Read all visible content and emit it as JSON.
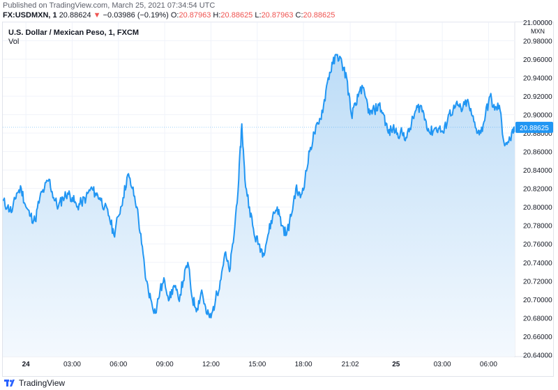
{
  "published": "Published on TradingView.com, March 25, 2021 07:34:54 UTC",
  "quote": {
    "symbol": "FX:USDMXN, 1",
    "last": "20.88624",
    "change_arrow": "▼",
    "change": "−0.03986 (−0.19%)",
    "o_label": "O:",
    "o": "20.87963",
    "h_label": "H:",
    "h": "20.88625",
    "l_label": "L:",
    "l": "20.87963",
    "c_label": "C:",
    "c": "20.88625"
  },
  "chart_title": "U.S. Dollar / Mexican Peso, 1, FXCM",
  "vol_label": "Vol",
  "currency": "MXN",
  "last_price_label": "20.88625",
  "footer_brand": "TradingView",
  "colors": {
    "line": "#2196f3",
    "area_top": "#bcdcf7",
    "area_bottom": "#f4f9fe",
    "vol_up": "#26a69a",
    "vol_down": "#ef5350",
    "price_tag": "#2196f3"
  },
  "chart_data": {
    "type": "area",
    "title": "U.S. Dollar / Mexican Peso, 1, FXCM",
    "x_tick_labels": [
      "24",
      "03:00",
      "06:00",
      "09:00",
      "12:00",
      "15:00",
      "18:00",
      "21:02",
      "25",
      "03:00",
      "06:00"
    ],
    "x_tick_hours": [
      0,
      3,
      6,
      9,
      12,
      15,
      18,
      21.03,
      24,
      27,
      30
    ],
    "x_range_hours": [
      -1.5,
      31.7
    ],
    "y_tick_labels": [
      "20.64000",
      "20.66000",
      "20.68000",
      "20.70000",
      "20.72000",
      "20.74000",
      "20.76000",
      "20.78000",
      "20.80000",
      "20.82000",
      "20.84000",
      "20.86000",
      "20.88000",
      "20.90000",
      "20.92000",
      "20.94000",
      "20.96000",
      "20.98000",
      "21.00000"
    ],
    "ylim": [
      20.638,
      21.0
    ],
    "last_price": 20.88625,
    "series": [
      {
        "x": [
          -1.5,
          -1.2,
          -0.9,
          -0.6,
          -0.3,
          0.0,
          0.3,
          0.6,
          0.9,
          1.2,
          1.5,
          1.8,
          2.1,
          2.4,
          2.7,
          3.0,
          3.3,
          3.6,
          3.9,
          4.2,
          4.5,
          4.8,
          5.1,
          5.4,
          5.7,
          6.0,
          6.3,
          6.6,
          6.9,
          7.2,
          7.5,
          7.8,
          8.1,
          8.4,
          8.7,
          9.0,
          9.3,
          9.6,
          9.9,
          10.2,
          10.5,
          10.8,
          11.1,
          11.4,
          11.7,
          12.0,
          12.3,
          12.6,
          12.9,
          13.2,
          13.5,
          13.8,
          14.0,
          14.2,
          14.5,
          14.8,
          15.1,
          15.4,
          15.7,
          16.0,
          16.3,
          16.6,
          16.9,
          17.2,
          17.5,
          17.8,
          18.1,
          18.4,
          18.7,
          19.0,
          19.3,
          19.6,
          19.9,
          20.2,
          20.5,
          20.8,
          21.1,
          21.4,
          21.7,
          22.0,
          22.3,
          22.6,
          22.9,
          23.2,
          23.5,
          23.8,
          24.1,
          24.4,
          24.7,
          25.0,
          25.3,
          25.6,
          25.9,
          26.2,
          26.5,
          26.8,
          27.1,
          27.4,
          27.7,
          28.0,
          28.3,
          28.6,
          28.9,
          29.2,
          29.5,
          29.8,
          30.1,
          30.4,
          30.7,
          31.0,
          31.3,
          31.6,
          31.7
        ],
        "y": [
          20.807,
          20.8,
          20.795,
          20.815,
          20.82,
          20.8,
          20.79,
          20.785,
          20.81,
          20.82,
          20.83,
          20.81,
          20.8,
          20.81,
          20.815,
          20.81,
          20.8,
          20.805,
          20.81,
          20.82,
          20.815,
          20.81,
          20.8,
          20.79,
          20.77,
          20.79,
          20.81,
          20.835,
          20.82,
          20.8,
          20.76,
          20.72,
          20.7,
          20.685,
          20.71,
          20.72,
          20.7,
          20.715,
          20.7,
          20.72,
          20.74,
          20.7,
          20.69,
          20.71,
          20.685,
          20.68,
          20.7,
          20.72,
          20.75,
          20.73,
          20.77,
          20.83,
          20.89,
          20.83,
          20.8,
          20.77,
          20.76,
          20.75,
          20.77,
          20.79,
          20.8,
          20.78,
          20.77,
          20.79,
          20.82,
          20.81,
          20.83,
          20.86,
          20.88,
          20.89,
          20.91,
          20.94,
          20.955,
          20.965,
          20.955,
          20.94,
          20.9,
          20.91,
          20.93,
          20.92,
          20.9,
          20.905,
          20.91,
          20.9,
          20.88,
          20.885,
          20.88,
          20.88,
          20.875,
          20.89,
          20.905,
          20.91,
          20.895,
          20.88,
          20.885,
          20.885,
          20.88,
          20.9,
          20.905,
          20.91,
          20.905,
          20.915,
          20.9,
          20.885,
          20.88,
          20.9,
          20.92,
          20.905,
          20.91,
          20.87,
          20.87,
          20.88,
          20.886
        ]
      }
    ],
    "volume_note": "volume histogram along bottom, relative scale only"
  }
}
